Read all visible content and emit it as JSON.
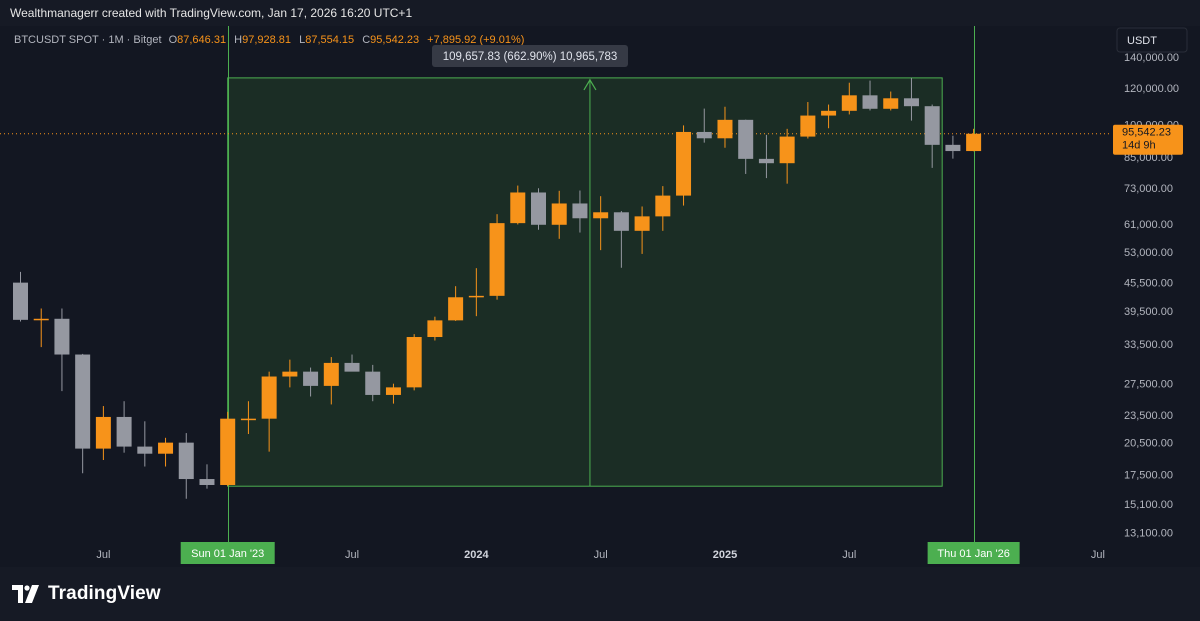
{
  "header": {
    "attribution": "Wealthmanagerr created with TradingView.com, Jan 17, 2026 16:20 UTC+1"
  },
  "legend": {
    "symbol": "BTCUSDT SPOT · 1M · Bitget",
    "o_label": "O",
    "o_value": "87,646.31",
    "h_label": "H",
    "h_value": "97,928.81",
    "l_label": "L",
    "l_value": "87,554.15",
    "c_label": "C",
    "c_value": "95,542.23",
    "change": "+7,895.92 (+9.01%)"
  },
  "currency_button": "USDT",
  "measurement": {
    "label": "109,657.83 (662.90%) 10,965,783"
  },
  "price_tag": {
    "value": "95,542.23",
    "countdown": "14d 9h"
  },
  "time_tags": {
    "start": "Sun 01 Jan '23",
    "end": "Thu 01 Jan '26"
  },
  "footer": {
    "logo_text": "TradingView"
  },
  "colors": {
    "background": "#131722",
    "up": "#f7931a",
    "down": "#9598a1",
    "range_fill": "#1c3326",
    "range_line": "#4caf50",
    "text": "#b2b5be"
  },
  "chart_data": {
    "type": "candlestick",
    "scale": "log",
    "yaxis_ticks": [
      "140,000.00",
      "120,000.00",
      "100,000.00",
      "85,000.00",
      "73,000.00",
      "61,000.00",
      "53,000.00",
      "45,500.00",
      "39,500.00",
      "33,500.00",
      "27,500.00",
      "23,500.00",
      "20,500.00",
      "17,500.00",
      "15,100.00",
      "13,100.00"
    ],
    "yaxis_tick_values": [
      140000,
      120000,
      100000,
      85000,
      73000,
      61000,
      53000,
      45500,
      39500,
      33500,
      27500,
      23500,
      20500,
      17500,
      15100,
      13100
    ],
    "xaxis_labels": [
      {
        "label": "Jul",
        "month": "2022-07",
        "bold": false
      },
      {
        "label": "Jul",
        "month": "2023-07",
        "bold": false
      },
      {
        "label": "2024",
        "month": "2024-01",
        "bold": true
      },
      {
        "label": "Jul",
        "month": "2024-07",
        "bold": false
      },
      {
        "label": "2025",
        "month": "2025-01",
        "bold": true
      },
      {
        "label": "Jul",
        "month": "2025-07",
        "bold": false
      },
      {
        "label": "Jul",
        "month": "2026-07",
        "bold": false
      }
    ],
    "candles": [
      {
        "month": "2022-03",
        "o": 45500,
        "h": 48000,
        "l": 37500,
        "c": 37800
      },
      {
        "month": "2022-04",
        "o": 37800,
        "h": 40000,
        "l": 33000,
        "c": 38000
      },
      {
        "month": "2022-05",
        "o": 38000,
        "h": 40000,
        "l": 26500,
        "c": 31800
      },
      {
        "month": "2022-06",
        "o": 31800,
        "h": 31900,
        "l": 17600,
        "c": 19900
      },
      {
        "month": "2022-07",
        "o": 19900,
        "h": 24600,
        "l": 18800,
        "c": 23300
      },
      {
        "month": "2022-08",
        "o": 23300,
        "h": 25200,
        "l": 19500,
        "c": 20100
      },
      {
        "month": "2022-09",
        "o": 20100,
        "h": 22800,
        "l": 18200,
        "c": 19400
      },
      {
        "month": "2022-10",
        "o": 19400,
        "h": 21000,
        "l": 18200,
        "c": 20500
      },
      {
        "month": "2022-11",
        "o": 20500,
        "h": 21500,
        "l": 15500,
        "c": 17100
      },
      {
        "month": "2022-12",
        "o": 17100,
        "h": 18400,
        "l": 16300,
        "c": 16600
      },
      {
        "month": "2023-01",
        "o": 16600,
        "h": 23900,
        "l": 16500,
        "c": 23100
      },
      {
        "month": "2023-02",
        "o": 23100,
        "h": 25200,
        "l": 21400,
        "c": 23100
      },
      {
        "month": "2023-03",
        "o": 23100,
        "h": 29200,
        "l": 19600,
        "c": 28500
      },
      {
        "month": "2023-04",
        "o": 28500,
        "h": 31000,
        "l": 27000,
        "c": 29200
      },
      {
        "month": "2023-05",
        "o": 29200,
        "h": 29800,
        "l": 25800,
        "c": 27200
      },
      {
        "month": "2023-06",
        "o": 27200,
        "h": 31400,
        "l": 24800,
        "c": 30500
      },
      {
        "month": "2023-07",
        "o": 30500,
        "h": 31800,
        "l": 29500,
        "c": 29200
      },
      {
        "month": "2023-08",
        "o": 29200,
        "h": 30200,
        "l": 25200,
        "c": 26000
      },
      {
        "month": "2023-09",
        "o": 26000,
        "h": 27500,
        "l": 24900,
        "c": 27000
      },
      {
        "month": "2023-10",
        "o": 27000,
        "h": 35200,
        "l": 26600,
        "c": 34700
      },
      {
        "month": "2023-11",
        "o": 34700,
        "h": 38400,
        "l": 34100,
        "c": 37700
      },
      {
        "month": "2023-12",
        "o": 37700,
        "h": 44700,
        "l": 37600,
        "c": 42300
      },
      {
        "month": "2024-01",
        "o": 42300,
        "h": 48900,
        "l": 38500,
        "c": 42600
      },
      {
        "month": "2024-02",
        "o": 42600,
        "h": 64000,
        "l": 41800,
        "c": 61200
      },
      {
        "month": "2024-03",
        "o": 61200,
        "h": 73800,
        "l": 60800,
        "c": 71300
      },
      {
        "month": "2024-04",
        "o": 71300,
        "h": 72800,
        "l": 59200,
        "c": 60700
      },
      {
        "month": "2024-05",
        "o": 60700,
        "h": 71900,
        "l": 56600,
        "c": 67500
      },
      {
        "month": "2024-06",
        "o": 67500,
        "h": 72000,
        "l": 58400,
        "c": 62700
      },
      {
        "month": "2024-07",
        "o": 62700,
        "h": 70000,
        "l": 53500,
        "c": 64600
      },
      {
        "month": "2024-08",
        "o": 64600,
        "h": 65000,
        "l": 49000,
        "c": 58900
      },
      {
        "month": "2024-09",
        "o": 58900,
        "h": 66500,
        "l": 52500,
        "c": 63300
      },
      {
        "month": "2024-10",
        "o": 63300,
        "h": 73600,
        "l": 58900,
        "c": 70200
      },
      {
        "month": "2024-11",
        "o": 70200,
        "h": 99600,
        "l": 66800,
        "c": 96400
      },
      {
        "month": "2024-12",
        "o": 96400,
        "h": 108300,
        "l": 91400,
        "c": 93400
      },
      {
        "month": "2025-01",
        "o": 93400,
        "h": 109300,
        "l": 89100,
        "c": 102400
      },
      {
        "month": "2025-02",
        "o": 102400,
        "h": 102500,
        "l": 78200,
        "c": 84300
      },
      {
        "month": "2025-03",
        "o": 84300,
        "h": 95000,
        "l": 76600,
        "c": 82500
      },
      {
        "month": "2025-04",
        "o": 82500,
        "h": 97900,
        "l": 74500,
        "c": 94200
      },
      {
        "month": "2025-05",
        "o": 94200,
        "h": 111900,
        "l": 93300,
        "c": 104600
      },
      {
        "month": "2025-06",
        "o": 104600,
        "h": 110500,
        "l": 98200,
        "c": 107100
      },
      {
        "month": "2025-07",
        "o": 107100,
        "h": 123200,
        "l": 105200,
        "c": 115700
      },
      {
        "month": "2025-08",
        "o": 115700,
        "h": 124500,
        "l": 107300,
        "c": 108200
      },
      {
        "month": "2025-09",
        "o": 108200,
        "h": 117900,
        "l": 107300,
        "c": 114000
      },
      {
        "month": "2025-10",
        "o": 114000,
        "h": 126200,
        "l": 102000,
        "c": 109600
      },
      {
        "month": "2025-11",
        "o": 109600,
        "h": 110500,
        "l": 80600,
        "c": 90400
      },
      {
        "month": "2025-12",
        "o": 90400,
        "h": 94600,
        "l": 84400,
        "c": 87646.31
      },
      {
        "month": "2026-01",
        "o": 87646.31,
        "h": 97928.81,
        "l": 87554.15,
        "c": 95542.23
      }
    ],
    "measurement": {
      "start_month": "2023-01",
      "end_month": "2025-11",
      "low": 16500,
      "high": 126200,
      "arrow_month": "2024-06"
    },
    "crosshair_months": [
      "2023-01",
      "2026-01"
    ]
  }
}
